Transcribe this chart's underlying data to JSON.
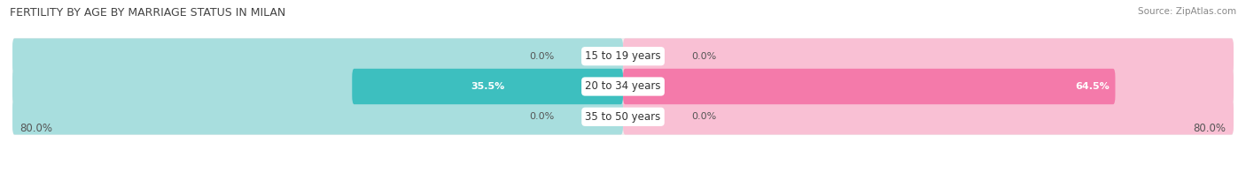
{
  "title": "FERTILITY BY AGE BY MARRIAGE STATUS IN MILAN",
  "source": "Source: ZipAtlas.com",
  "categories": [
    "15 to 19 years",
    "20 to 34 years",
    "35 to 50 years"
  ],
  "married_values": [
    0.0,
    35.5,
    0.0
  ],
  "unmarried_values": [
    0.0,
    64.5,
    0.0
  ],
  "married_color": "#3dbfbf",
  "unmarried_color": "#f47aaa",
  "married_light": "#a8dede",
  "unmarried_light": "#f9c0d4",
  "row_bg_even": "#f0f0f0",
  "row_bg_odd": "#e6e6e6",
  "xlim_left": -80,
  "xlim_right": 80,
  "left_label": "80.0%",
  "right_label": "80.0%",
  "title_fontsize": 9,
  "source_fontsize": 7.5,
  "bar_height": 0.62,
  "fig_bg": "#ffffff",
  "max_val": 80.0,
  "min_display_val": 8.0
}
